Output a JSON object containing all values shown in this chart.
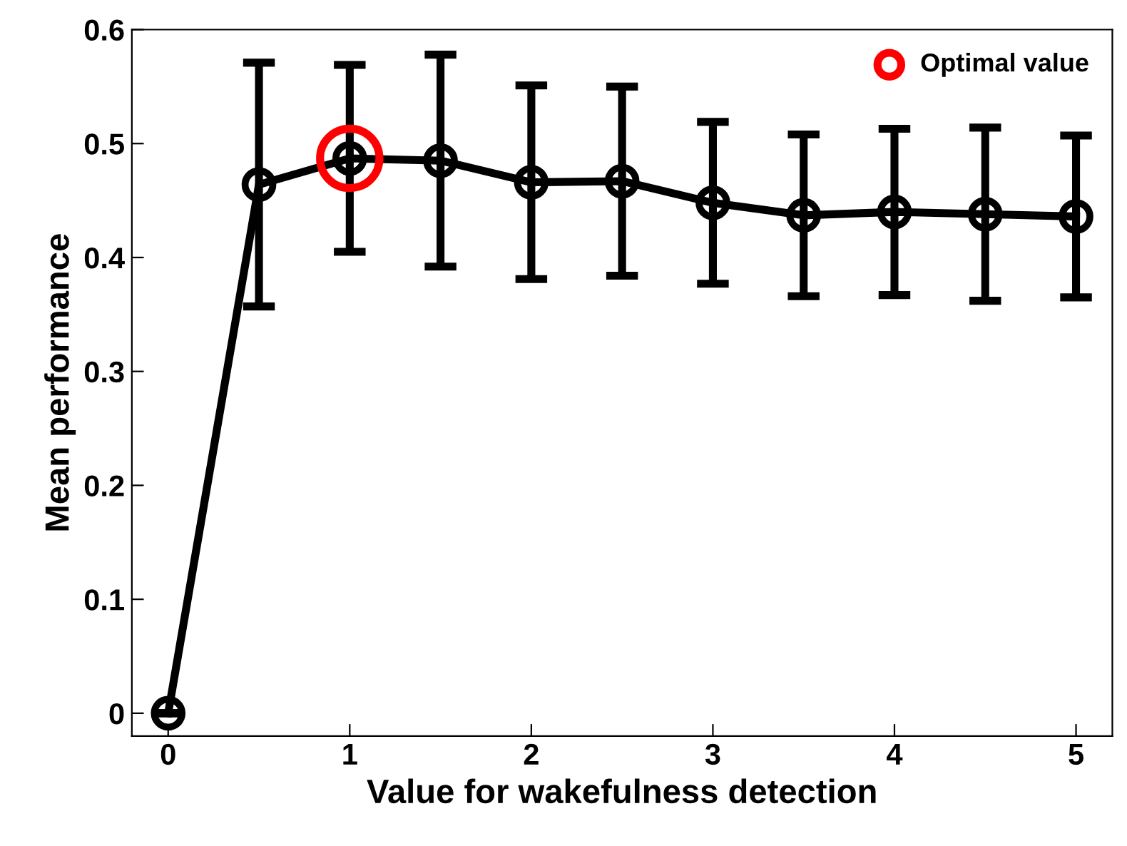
{
  "chart_data": {
    "type": "line",
    "xlabel": "Value for wakefulness detection",
    "ylabel": "Mean performance",
    "x": [
      0,
      0.5,
      1,
      1.5,
      2,
      2.5,
      3,
      3.5,
      4,
      4.5,
      5
    ],
    "series": [
      {
        "color": "#000000",
        "values": [
          0,
          0.464,
          0.487,
          0.485,
          0.466,
          0.467,
          0.448,
          0.437,
          0.44,
          0.438,
          0.436
        ],
        "errors": [
          null,
          0.107,
          0.082,
          0.093,
          0.085,
          0.083,
          0.071,
          0.071,
          0.073,
          0.076,
          0.071
        ],
        "marker": "circle",
        "line_style": "solid"
      },
      {
        "type": "scatter",
        "name": "Optimal value",
        "color": "#ff0000",
        "x": [
          1
        ],
        "values": [
          0.487
        ],
        "marker": "circle"
      }
    ],
    "xlim": [
      -0.2,
      5.2
    ],
    "ylim": [
      -0.02,
      0.6
    ],
    "xticks": [
      0,
      1,
      2,
      3,
      4,
      5
    ],
    "yticks": [
      0,
      0.1,
      0.2,
      0.3,
      0.4,
      0.5,
      0.6
    ],
    "grid": false,
    "legend": "top right"
  }
}
